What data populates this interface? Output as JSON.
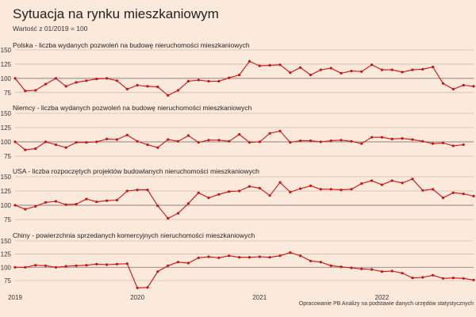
{
  "title": "Sytuacja na rynku mieszkaniowym",
  "subtitle": "Wartość z 01/2019 = 100",
  "source": "Opracowanie PB Analizy na podstawie danych urzędów statystycznych",
  "colors": {
    "background": "#fbe9dc",
    "series": "#cc1111",
    "grid": "#b8aca3"
  },
  "chart_data": [
    {
      "type": "line",
      "title": "Polska - liczba wydanych pozwoleń na budowę nieruchomości mieszkaniowych",
      "ylim": [
        65,
        150
      ],
      "yticks": [
        75,
        100,
        125,
        150
      ],
      "start": "2019-01",
      "values": [
        100,
        78,
        79,
        90,
        100,
        86,
        93,
        96,
        99,
        100,
        96,
        81,
        88,
        86,
        85,
        70,
        79,
        95,
        97,
        95,
        95,
        101,
        106,
        130,
        122,
        123,
        124,
        110,
        119,
        106,
        115,
        118,
        109,
        113,
        112,
        124,
        115,
        115,
        111,
        115,
        116,
        120,
        91,
        81,
        88,
        86
      ]
    },
    {
      "type": "line",
      "title": "Niemcy - liczba wydanych pozwoleń na budowę nieruchomości mieszkaniowych",
      "ylim": [
        75,
        150
      ],
      "yticks": [
        75,
        100,
        125,
        150
      ],
      "start": "2019-01",
      "values": [
        100,
        86,
        88,
        100,
        95,
        90,
        99,
        99,
        100,
        105,
        104,
        112,
        101,
        95,
        90,
        104,
        101,
        111,
        99,
        103,
        103,
        101,
        113,
        99,
        100,
        115,
        119,
        99,
        102,
        102,
        100,
        102,
        103,
        101,
        97,
        108,
        108,
        105,
        106,
        104,
        101,
        97,
        98,
        93,
        95
      ]
    },
    {
      "type": "line",
      "title": "USA - liczba rozpoczętych projektów budowlanych nieruchomości mieszkaniowych",
      "ylim": [
        75,
        150
      ],
      "yticks": [
        75,
        100,
        125,
        150
      ],
      "start": "2019-01",
      "values": [
        100,
        93,
        98,
        105,
        107,
        101,
        102,
        111,
        106,
        108,
        109,
        125,
        127,
        127,
        99,
        77,
        86,
        103,
        122,
        113,
        119,
        124,
        125,
        133,
        130,
        117,
        140,
        123,
        129,
        134,
        128,
        128,
        127,
        128,
        138,
        143,
        136,
        143,
        139,
        146,
        126,
        128,
        113,
        122,
        120,
        116
      ]
    },
    {
      "type": "line",
      "title": "Chiny - powierzchnia sprzedanych komercyjnych nieruchomości mieszkaniowych",
      "ylim": [
        60,
        150
      ],
      "yticks": [
        75,
        100,
        125,
        150
      ],
      "start": "2019-01",
      "values": [
        100,
        100,
        104,
        103,
        100,
        102,
        103,
        104,
        106,
        105,
        106,
        107,
        61,
        62,
        92,
        103,
        110,
        108,
        118,
        120,
        118,
        122,
        119,
        119,
        120,
        119,
        122,
        128,
        122,
        112,
        110,
        103,
        101,
        99,
        97,
        96,
        92,
        93,
        89,
        80,
        81,
        85,
        79,
        80,
        79,
        76
      ]
    }
  ],
  "x_axis": {
    "labels": [
      "2019",
      "2020",
      "2021",
      "2022"
    ],
    "months_index": [
      0,
      12,
      24,
      36
    ]
  }
}
